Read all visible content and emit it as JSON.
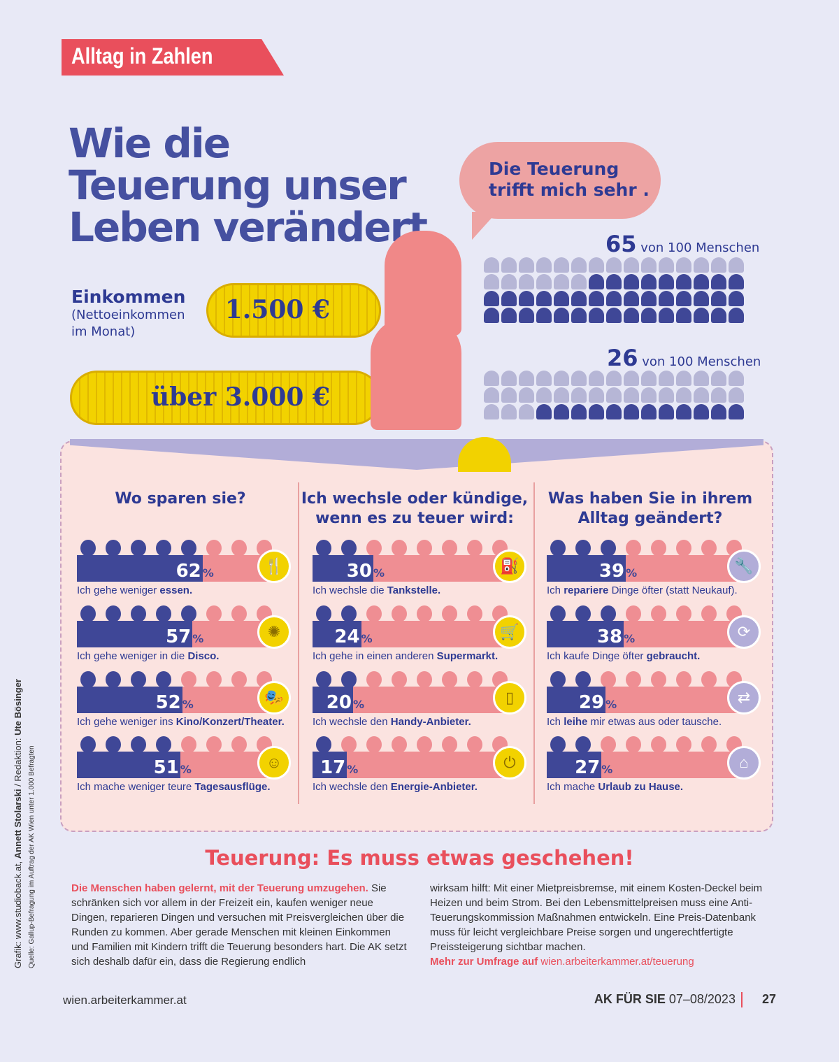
{
  "header": {
    "tag": "Alltag in Zahlen",
    "title": "Wie die Teuerung unser Leben verändert",
    "bubble": "Die Teuerung trifft mich sehr ."
  },
  "income": {
    "label": "Einkommen",
    "sublabel": "(Nettoeinkommen im Monat)",
    "groups": [
      {
        "amount": "1.500 €",
        "count": "65",
        "suffix": "von 100 Menschen"
      },
      {
        "amount": "über 3.000 €",
        "count": "26",
        "suffix": "von 100 Menschen"
      }
    ]
  },
  "colors": {
    "blue": "#3f4797",
    "pink": "#ef8e93",
    "red": "#e94f5c",
    "title": "#4550a0",
    "yellow": "#f2d200",
    "lavender": "#b2add8"
  },
  "chart_data": [
    {
      "type": "bar",
      "title": "Einkommen",
      "categories": [
        "1.500 €",
        "über 3.000 €"
      ],
      "values": [
        65,
        26
      ],
      "unit": "von 100 Menschen",
      "ylim": [
        0,
        100
      ]
    },
    {
      "type": "bar",
      "title": "Wo sparen sie?",
      "ylim": [
        0,
        100
      ],
      "unit": "%",
      "items": [
        {
          "pre": "Ich gehe weniger ",
          "bold": "essen.",
          "post": "",
          "value": 62,
          "icon": "fork-knife-icon",
          "glyph": "🍴"
        },
        {
          "pre": "Ich gehe weniger in die ",
          "bold": "Disco.",
          "post": "",
          "value": 57,
          "icon": "disco-ball-icon",
          "glyph": "✺"
        },
        {
          "pre": "Ich gehe weniger ins ",
          "bold": "Kino/Konzert/Theater.",
          "post": "",
          "value": 52,
          "icon": "theater-stage-icon",
          "glyph": "🎭"
        },
        {
          "pre": "Ich mache weniger teure ",
          "bold": "Tagesausflüge.",
          "post": "",
          "value": 51,
          "icon": "excursion-icon",
          "glyph": "☺"
        }
      ]
    },
    {
      "type": "bar",
      "title": "Ich wechsle oder kündige, wenn es zu teuer wird:",
      "ylim": [
        0,
        100
      ],
      "unit": "%",
      "items": [
        {
          "pre": "Ich wechsle die ",
          "bold": "Tankstelle.",
          "post": "",
          "value": 30,
          "icon": "fuel-pump-icon",
          "glyph": "⛽"
        },
        {
          "pre": "Ich gehe in einen anderen ",
          "bold": "Supermarkt.",
          "post": "",
          "value": 24,
          "icon": "shopping-cart-icon",
          "glyph": "🛒"
        },
        {
          "pre": "Ich wechsle den ",
          "bold": "Handy-Anbieter.",
          "post": "",
          "value": 20,
          "icon": "mobile-phone-icon",
          "glyph": "▯"
        },
        {
          "pre": "Ich wechsle den ",
          "bold": "Energie-Anbieter.",
          "post": "",
          "value": 17,
          "icon": "power-plug-icon",
          "glyph": "⏻"
        }
      ]
    },
    {
      "type": "bar",
      "title": "Was haben Sie in ihrem Alltag geändert?",
      "ylim": [
        0,
        100
      ],
      "unit": "%",
      "items": [
        {
          "pre": "Ich ",
          "bold": "repariere",
          "post": " Dinge öfter (statt Neukauf).",
          "value": 39,
          "icon": "wrench-hand-icon",
          "glyph": "🔧"
        },
        {
          "pre": "Ich kaufe Dinge öfter ",
          "bold": "gebraucht.",
          "post": "",
          "value": 38,
          "icon": "recycle-icon",
          "glyph": "⟳"
        },
        {
          "pre": "Ich ",
          "bold": "leihe",
          "post": " mir etwas aus oder tausche.",
          "value": 29,
          "icon": "exchange-arrows-icon",
          "glyph": "⇄"
        },
        {
          "pre": "Ich mache ",
          "bold": "Urlaub zu Hause.",
          "post": "",
          "value": 27,
          "icon": "house-icon",
          "glyph": "⌂"
        }
      ]
    }
  ],
  "article": {
    "heading": "Teuerung: Es muss etwas geschehen!",
    "lead": "Die Menschen haben gelernt, mit der Teuerung umzugehen.",
    "col1": " Sie schränken sich vor allem in der Freizeit ein, kaufen weniger neue Dingen, reparieren Dingen und versuchen mit Preisvergleichen über die Runden zu kommen. Aber gerade Menschen mit kleinen Einkommen und Familien mit Kindern trifft die Teuerung besonders hart. Die AK setzt sich deshalb dafür ein, dass die Regierung endlich",
    "col2": "wirksam hilft: Mit einer Mietpreisbremse, mit einem Kosten-Deckel beim Heizen und beim Strom. Bei den Lebensmittelpreisen muss eine Anti-Teuerungskommission Maßnahmen entwickeln. Eine Preis-Datenbank muss für leicht vergleichbare Preise sorgen und ungerechtfertigte Preissteigerung sichtbar machen.",
    "more": "Mehr zur Umfrage auf",
    "link": "wien.arbeiterkammer.at/teuerung"
  },
  "credits": {
    "grafik": "Grafik: www.studioback.at, ",
    "author": "Annett Stolarski",
    "red": " / Redaktion: ",
    "editor": "Ute Bösinger",
    "source": "Quelle: Gallup-Befragung im Auftrag der AK Wien unter 1.000 Befragten"
  },
  "footer": {
    "site": "wien.arbeiterkammer.at",
    "mag": "AK FÜR SIE",
    "issue": " 07–08/2023",
    "page": "27"
  }
}
